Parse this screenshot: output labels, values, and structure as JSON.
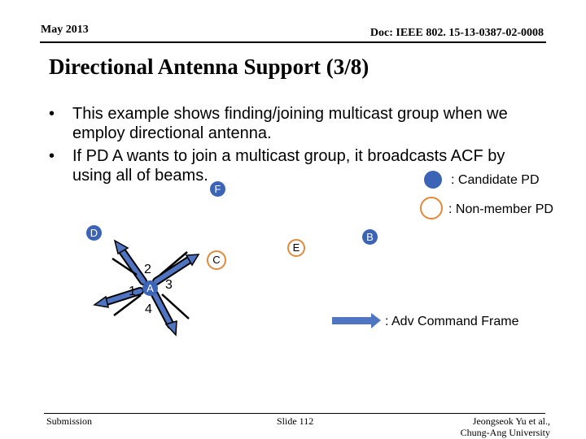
{
  "header": {
    "date": "May 2013",
    "doc": "Doc: IEEE 802. 15-13-0387-02-0008"
  },
  "title": "Directional Antenna Support (3/8)",
  "bullets": [
    {
      "symbol": "•",
      "text": "This example shows finding/joining multicast group when we employ directional antenna."
    },
    {
      "symbol": "•",
      "text": "If PD A wants to join a multicast group, it broadcasts ACF by using all of beams."
    }
  ],
  "legend": {
    "candidate_label": ": Candidate PD",
    "nonmember_label": ": Non-member PD",
    "adv_label": ": Adv Command Frame"
  },
  "nodes": {
    "A": "A",
    "B": "B",
    "C": "C",
    "D": "D",
    "E": "E",
    "F": "F"
  },
  "beams": {
    "b1": "1",
    "b2": "2",
    "b3": "3",
    "b4": "4"
  },
  "footer": {
    "submission": "Submission",
    "slide": "Slide 112",
    "author_line1": "Jeongseok Yu et al.,",
    "author_line2": "Chung-Ang University"
  },
  "colors": {
    "candidate": "#3b64b6",
    "nonmember_border": "#e08a3c",
    "arrow": "#4f74c2"
  }
}
